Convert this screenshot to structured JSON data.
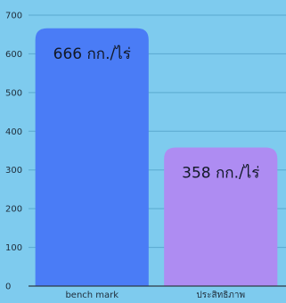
{
  "chart_data": {
    "type": "bar",
    "categories": [
      "bench mark",
      "ประสิทธิภาพ"
    ],
    "values": [
      666,
      358
    ],
    "data_labels": [
      "666 กก./ไร่",
      "358 กก./ไร่"
    ],
    "colors": [
      "#4a7cf6",
      "#ae8cf2"
    ],
    "y_ticks": [
      "0",
      "100",
      "200",
      "300",
      "400",
      "500",
      "600",
      "700"
    ],
    "ylim": [
      0,
      700
    ],
    "grid": true,
    "title": "",
    "xlabel": "",
    "ylabel": ""
  }
}
